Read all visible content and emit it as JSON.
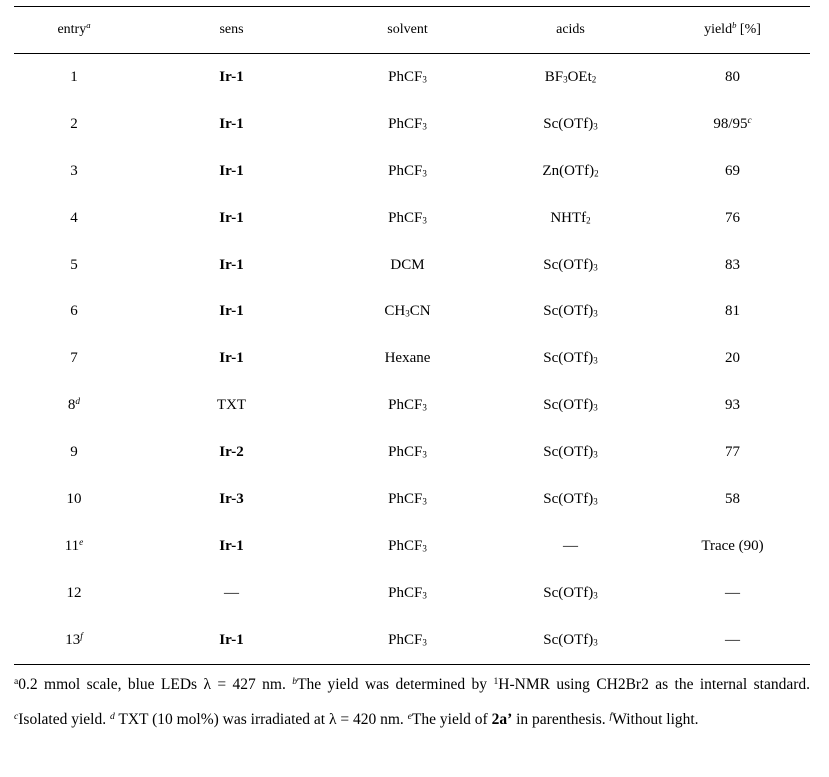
{
  "table": {
    "headers": {
      "entry": "entry",
      "entry_mark": "a",
      "sens": "sens",
      "solvent": "solvent",
      "acids": "acids",
      "yield": "yield",
      "yield_mark": "b",
      "yield_unit": " [%]"
    },
    "rows": [
      {
        "entry": "1",
        "entry_mark": "",
        "sens": "Ir-1",
        "sens_bold": true,
        "solvent": "PhCF",
        "solvent_sub": "3",
        "solvent_tail": "",
        "acid": "BF",
        "acid_sub": "3",
        "acid_mid": "OEt",
        "acid_sub2": "2",
        "yield": "80",
        "yield_mark": ""
      },
      {
        "entry": "2",
        "entry_mark": "",
        "sens": "Ir-1",
        "sens_bold": true,
        "solvent": "PhCF",
        "solvent_sub": "3",
        "solvent_tail": "",
        "acid": "Sc(OTf)",
        "acid_sub": "3",
        "acid_mid": "",
        "acid_sub2": "",
        "yield": "98/95",
        "yield_mark": "c"
      },
      {
        "entry": "3",
        "entry_mark": "",
        "sens": "Ir-1",
        "sens_bold": true,
        "solvent": "PhCF",
        "solvent_sub": "3",
        "solvent_tail": "",
        "acid": "Zn(OTf)",
        "acid_sub": "2",
        "acid_mid": "",
        "acid_sub2": "",
        "yield": "69",
        "yield_mark": ""
      },
      {
        "entry": "4",
        "entry_mark": "",
        "sens": "Ir-1",
        "sens_bold": true,
        "solvent": "PhCF",
        "solvent_sub": "3",
        "solvent_tail": "",
        "acid": "NHTf",
        "acid_sub": "2",
        "acid_mid": "",
        "acid_sub2": "",
        "yield": "76",
        "yield_mark": ""
      },
      {
        "entry": "5",
        "entry_mark": "",
        "sens": "Ir-1",
        "sens_bold": true,
        "solvent": "DCM",
        "solvent_sub": "",
        "solvent_tail": "",
        "acid": "Sc(OTf)",
        "acid_sub": "3",
        "acid_mid": "",
        "acid_sub2": "",
        "yield": "83",
        "yield_mark": ""
      },
      {
        "entry": "6",
        "entry_mark": "",
        "sens": "Ir-1",
        "sens_bold": true,
        "solvent": "CH",
        "solvent_sub": "3",
        "solvent_tail": "CN",
        "acid": "Sc(OTf)",
        "acid_sub": "3",
        "acid_mid": "",
        "acid_sub2": "",
        "yield": "81",
        "yield_mark": ""
      },
      {
        "entry": "7",
        "entry_mark": "",
        "sens": "Ir-1",
        "sens_bold": true,
        "solvent": "Hexane",
        "solvent_sub": "",
        "solvent_tail": "",
        "acid": "Sc(OTf)",
        "acid_sub": "3",
        "acid_mid": "",
        "acid_sub2": "",
        "yield": "20",
        "yield_mark": ""
      },
      {
        "entry": "8",
        "entry_mark": "d",
        "sens": "TXT",
        "sens_bold": false,
        "solvent": "PhCF",
        "solvent_sub": "3",
        "solvent_tail": "",
        "acid": "Sc(OTf)",
        "acid_sub": "3",
        "acid_mid": "",
        "acid_sub2": "",
        "yield": "93",
        "yield_mark": ""
      },
      {
        "entry": "9",
        "entry_mark": "",
        "sens": "Ir-2",
        "sens_bold": true,
        "solvent": "PhCF",
        "solvent_sub": "3",
        "solvent_tail": "",
        "acid": "Sc(OTf)",
        "acid_sub": "3",
        "acid_mid": "",
        "acid_sub2": "",
        "yield": "77",
        "yield_mark": ""
      },
      {
        "entry": "10",
        "entry_mark": "",
        "sens": "Ir-3",
        "sens_bold": true,
        "solvent": "PhCF",
        "solvent_sub": "3",
        "solvent_tail": "",
        "acid": "Sc(OTf)",
        "acid_sub": "3",
        "acid_mid": "",
        "acid_sub2": "",
        "yield": "58",
        "yield_mark": ""
      },
      {
        "entry": "11",
        "entry_mark": "e",
        "sens": "Ir-1",
        "sens_bold": true,
        "solvent": "PhCF",
        "solvent_sub": "3",
        "solvent_tail": "",
        "acid": "—",
        "acid_sub": "",
        "acid_mid": "",
        "acid_sub2": "",
        "yield": "Trace (90)",
        "yield_mark": ""
      },
      {
        "entry": "12",
        "entry_mark": "",
        "sens": "—",
        "sens_bold": false,
        "solvent": "PhCF",
        "solvent_sub": "3",
        "solvent_tail": "",
        "acid": "Sc(OTf)",
        "acid_sub": "3",
        "acid_mid": "",
        "acid_sub2": "",
        "yield": "—",
        "yield_mark": ""
      },
      {
        "entry": "13",
        "entry_mark": "f",
        "sens": "Ir-1",
        "sens_bold": true,
        "solvent": "PhCF",
        "solvent_sub": "3",
        "solvent_tail": "",
        "acid": "Sc(OTf)",
        "acid_sub": "3",
        "acid_mid": "",
        "acid_sub2": "",
        "yield": "—",
        "yield_mark": ""
      }
    ]
  },
  "footnotes": {
    "a_mark": "a",
    "a_text": "0.2 mmol scale, blue LEDs λ = 427 nm. ",
    "b_mark": "b",
    "b_text_1": "The yield was determined by ",
    "b_iso": "1",
    "b_text_2": "H-NMR using CH2Br2 as the internal standard. ",
    "c_mark": "c",
    "c_text": "Isolated yield. ",
    "d_mark": "d",
    "d_text": " TXT (10 mol%) was irradiated at λ = 420 nm. ",
    "e_mark": "e",
    "e_text_1": "The yield of ",
    "e_compound": "2a’",
    "e_text_2": " in parenthesis. ",
    "f_mark": "f",
    "f_text": "Without light."
  }
}
